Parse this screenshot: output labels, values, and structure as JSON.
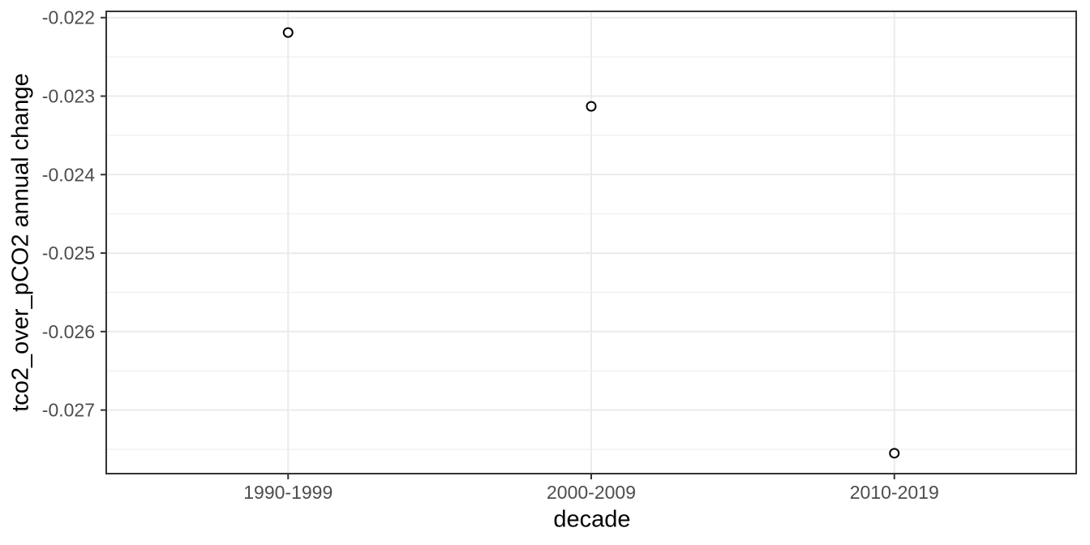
{
  "chart_data": {
    "type": "scatter",
    "title": "",
    "xlabel": "decade",
    "ylabel": "tco2_over_pCO2 annual change",
    "categories": [
      "1990-1999",
      "2000-2009",
      "2010-2019"
    ],
    "values": [
      -0.02219,
      -0.02313,
      -0.02755
    ],
    "ylim": [
      -0.02781,
      -0.02192
    ],
    "yticks": [
      -0.022,
      -0.023,
      -0.024,
      -0.025,
      -0.026,
      -0.027
    ],
    "ytick_labels": [
      "-0.022",
      "-0.023",
      "-0.024",
      "-0.025",
      "-0.026",
      "-0.027"
    ],
    "yminor": [
      -0.0225,
      -0.0235,
      -0.0245,
      -0.0255,
      -0.0265,
      -0.0275
    ],
    "grid": "major+minor",
    "legend_position": "none",
    "marker": "open-circle",
    "marker_radius": 5.5,
    "colors": {
      "background": "#ffffff",
      "panel_background": "#ffffff",
      "panel_border": "#333333",
      "grid_major": "#ebebeb",
      "grid_minor": "#efefef",
      "tick_mark": "#333333",
      "tick_label": "#4d4d4d",
      "axis_title": "#000000",
      "point_stroke": "#000000",
      "point_fill": "#ffffff"
    }
  }
}
